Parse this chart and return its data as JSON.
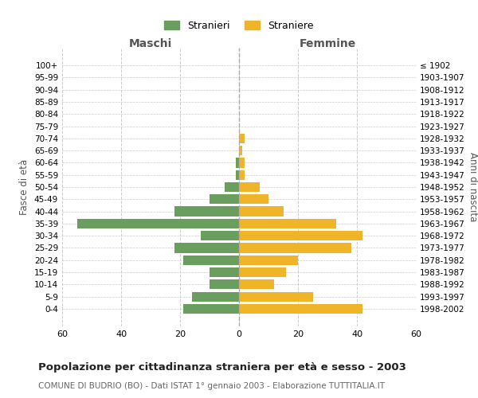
{
  "age_groups": [
    "0-4",
    "5-9",
    "10-14",
    "15-19",
    "20-24",
    "25-29",
    "30-34",
    "35-39",
    "40-44",
    "45-49",
    "50-54",
    "55-59",
    "60-64",
    "65-69",
    "70-74",
    "75-79",
    "80-84",
    "85-89",
    "90-94",
    "95-99",
    "100+"
  ],
  "birth_years": [
    "1998-2002",
    "1993-1997",
    "1988-1992",
    "1983-1987",
    "1978-1982",
    "1973-1977",
    "1968-1972",
    "1963-1967",
    "1958-1962",
    "1953-1957",
    "1948-1952",
    "1943-1947",
    "1938-1942",
    "1933-1937",
    "1928-1932",
    "1923-1927",
    "1918-1922",
    "1913-1917",
    "1908-1912",
    "1903-1907",
    "≤ 1902"
  ],
  "males": [
    19,
    16,
    10,
    10,
    19,
    22,
    13,
    55,
    22,
    10,
    5,
    1,
    1,
    0,
    0,
    0,
    0,
    0,
    0,
    0,
    0
  ],
  "females": [
    42,
    25,
    12,
    16,
    20,
    38,
    42,
    33,
    15,
    10,
    7,
    2,
    2,
    1,
    2,
    0,
    0,
    0,
    0,
    0,
    0
  ],
  "male_color": "#6a9e5e",
  "female_color": "#f0b429",
  "grid_color": "#cccccc",
  "title": "Popolazione per cittadinanza straniera per età e sesso - 2003",
  "subtitle": "COMUNE DI BUDRIO (BO) - Dati ISTAT 1° gennaio 2003 - Elaborazione TUTTITALIA.IT",
  "xlabel_left": "Maschi",
  "xlabel_right": "Femmine",
  "ylabel_left": "Fasce di età",
  "ylabel_right": "Anni di nascita",
  "legend_male": "Stranieri",
  "legend_female": "Straniere",
  "xlim": 60,
  "bar_height": 0.8
}
